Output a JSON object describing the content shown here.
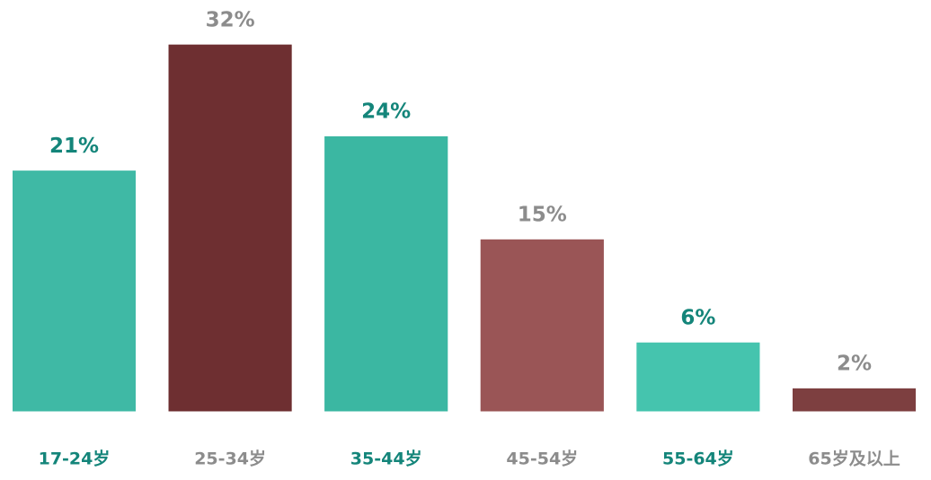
{
  "chart_data": {
    "type": "bar",
    "categories": [
      "17-24岁",
      "25-34岁",
      "35-44岁",
      "45-54岁",
      "55-64岁",
      "65岁及以上"
    ],
    "values": [
      21,
      32,
      24,
      15,
      6,
      2
    ],
    "value_labels": [
      "21%",
      "32%",
      "24%",
      "15%",
      "6%",
      "2%"
    ],
    "colors": [
      "#3fb9a5",
      "#6e2f31",
      "#3bb7a2",
      "#9a5556",
      "#45c4ae",
      "#7d3f40"
    ],
    "label_colors": [
      "#14857a",
      "#8c8c8c",
      "#14857a",
      "#8c8c8c",
      "#14857a",
      "#8c8c8c"
    ],
    "ylim": [
      -2,
      33
    ]
  }
}
